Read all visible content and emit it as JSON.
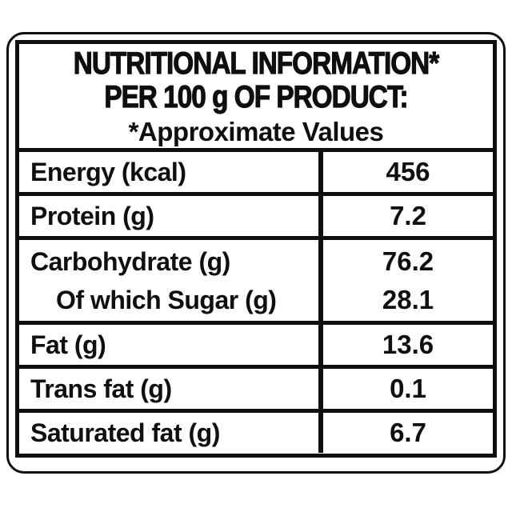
{
  "label": {
    "header": {
      "title_line1": "NUTRITIONAL INFORMATION*",
      "title_line2": "PER 100 g OF PRODUCT:",
      "subtitle": "*Approximate Values"
    },
    "rows": [
      {
        "label": "Energy (kcal)",
        "value": "456"
      },
      {
        "label": "Protein (g)",
        "value": "7.2"
      },
      {
        "label": "Carbohydrate (g)",
        "value": "76.2",
        "sub_label": "Of which Sugar (g)",
        "sub_value": "28.1"
      },
      {
        "label": "Fat (g)",
        "value": "13.6"
      },
      {
        "label": "Trans fat (g)",
        "value": "0.1"
      },
      {
        "label": "Saturated fat (g)",
        "value": "6.7"
      }
    ],
    "colors": {
      "border": "#0f0f0f",
      "background": "#ffffff",
      "text": "#0f0f0f"
    }
  }
}
